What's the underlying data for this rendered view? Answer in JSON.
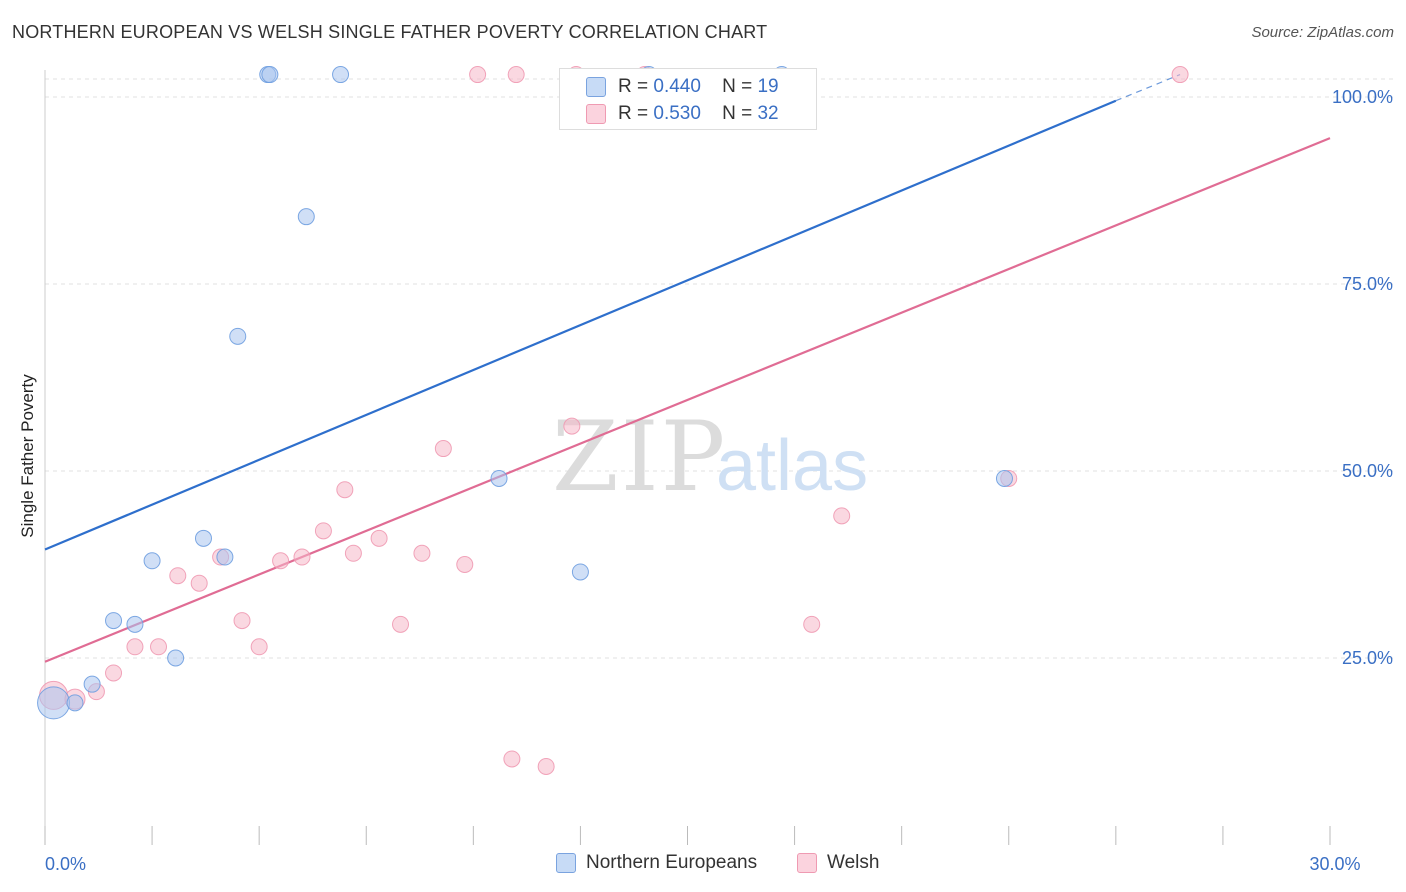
{
  "title": "NORTHERN EUROPEAN VS WELSH SINGLE FATHER POVERTY CORRELATION CHART",
  "source": "Source: ZipAtlas.com",
  "watermark": {
    "zip": "ZIP",
    "atlas": "atlas"
  },
  "stats": [
    {
      "r_label": "R =",
      "r_value": "0.440",
      "n_label": "N =",
      "n_value": "19",
      "color": "#a9c5ef"
    },
    {
      "r_label": "R =",
      "r_value": "0.530",
      "n_label": "N =",
      "n_value": "32",
      "color": "#f6b8c8"
    }
  ],
  "chart_data": {
    "type": "scatter",
    "title": "NORTHERN EUROPEAN VS WELSH SINGLE FATHER POVERTY CORRELATION CHART",
    "xlabel": "",
    "ylabel": "Single Father Poverty",
    "xlim": [
      0,
      30
    ],
    "ylim": [
      0,
      105
    ],
    "x_ticks": [
      {
        "value": 0,
        "label": "0.0%"
      },
      {
        "value": 30,
        "label": "30.0%"
      }
    ],
    "y_ticks": [
      {
        "value": 25,
        "label": "25.0%"
      },
      {
        "value": 50,
        "label": "50.0%"
      },
      {
        "value": 75,
        "label": "75.0%"
      },
      {
        "value": 100,
        "label": "100.0%"
      }
    ],
    "grid": true,
    "legend_position": "bottom",
    "series": [
      {
        "name": "Northern Europeans",
        "color": "#6f9fe0",
        "fill": "#a9c5ef",
        "line_color": "#2e6fcc",
        "trend": {
          "x0": 0,
          "y0": 39.5,
          "x1": 25,
          "y1": 99.5,
          "dashed_to_x": 26.5,
          "dashed_to_y": 103
        },
        "points": [
          {
            "x": 0.2,
            "y": 19,
            "size": 16
          },
          {
            "x": 0.7,
            "y": 19,
            "size": 8
          },
          {
            "x": 1.1,
            "y": 21.5,
            "size": 8
          },
          {
            "x": 1.6,
            "y": 30,
            "size": 8
          },
          {
            "x": 2.1,
            "y": 29.5,
            "size": 8
          },
          {
            "x": 2.5,
            "y": 38,
            "size": 8
          },
          {
            "x": 3.05,
            "y": 25,
            "size": 8
          },
          {
            "x": 3.7,
            "y": 41,
            "size": 8
          },
          {
            "x": 4.2,
            "y": 38.5,
            "size": 8
          },
          {
            "x": 4.5,
            "y": 68,
            "size": 8
          },
          {
            "x": 5.2,
            "y": 103,
            "size": 8
          },
          {
            "x": 5.25,
            "y": 103,
            "size": 8
          },
          {
            "x": 6.1,
            "y": 84,
            "size": 8
          },
          {
            "x": 6.9,
            "y": 103,
            "size": 8
          },
          {
            "x": 10.6,
            "y": 49,
            "size": 8
          },
          {
            "x": 12.5,
            "y": 36.5,
            "size": 8
          },
          {
            "x": 14.1,
            "y": 103,
            "size": 8
          },
          {
            "x": 17.2,
            "y": 103,
            "size": 8
          },
          {
            "x": 22.4,
            "y": 49,
            "size": 8
          }
        ]
      },
      {
        "name": "Welsh",
        "color": "#ef9ab2",
        "fill": "#f6b8c8",
        "line_color": "#e06c94",
        "trend": {
          "x0": 0,
          "y0": 24.5,
          "x1": 30,
          "y1": 94.5
        },
        "points": [
          {
            "x": 0.2,
            "y": 20,
            "size": 14
          },
          {
            "x": 0.7,
            "y": 19.5,
            "size": 10
          },
          {
            "x": 1.2,
            "y": 20.5,
            "size": 8
          },
          {
            "x": 1.6,
            "y": 23,
            "size": 8
          },
          {
            "x": 2.1,
            "y": 26.5,
            "size": 8
          },
          {
            "x": 2.65,
            "y": 26.5,
            "size": 8
          },
          {
            "x": 3.1,
            "y": 36,
            "size": 8
          },
          {
            "x": 3.6,
            "y": 35,
            "size": 8
          },
          {
            "x": 4.1,
            "y": 38.5,
            "size": 8
          },
          {
            "x": 4.6,
            "y": 30,
            "size": 8
          },
          {
            "x": 5.0,
            "y": 26.5,
            "size": 8
          },
          {
            "x": 5.5,
            "y": 38,
            "size": 8
          },
          {
            "x": 6.0,
            "y": 38.5,
            "size": 8
          },
          {
            "x": 6.5,
            "y": 42,
            "size": 8
          },
          {
            "x": 7.0,
            "y": 47.5,
            "size": 8
          },
          {
            "x": 7.2,
            "y": 39,
            "size": 8
          },
          {
            "x": 7.8,
            "y": 41,
            "size": 8
          },
          {
            "x": 8.3,
            "y": 29.5,
            "size": 8
          },
          {
            "x": 8.8,
            "y": 39,
            "size": 8
          },
          {
            "x": 9.3,
            "y": 53,
            "size": 8
          },
          {
            "x": 9.8,
            "y": 37.5,
            "size": 8
          },
          {
            "x": 10.1,
            "y": 103,
            "size": 8
          },
          {
            "x": 10.9,
            "y": 11.5,
            "size": 8
          },
          {
            "x": 11.0,
            "y": 103,
            "size": 8
          },
          {
            "x": 11.7,
            "y": 10.5,
            "size": 8
          },
          {
            "x": 12.3,
            "y": 56,
            "size": 8
          },
          {
            "x": 12.4,
            "y": 103,
            "size": 8
          },
          {
            "x": 14.0,
            "y": 103,
            "size": 8
          },
          {
            "x": 17.9,
            "y": 29.5,
            "size": 8
          },
          {
            "x": 18.6,
            "y": 44,
            "size": 8
          },
          {
            "x": 22.5,
            "y": 49,
            "size": 8
          },
          {
            "x": 26.5,
            "y": 103,
            "size": 8
          }
        ]
      }
    ]
  }
}
